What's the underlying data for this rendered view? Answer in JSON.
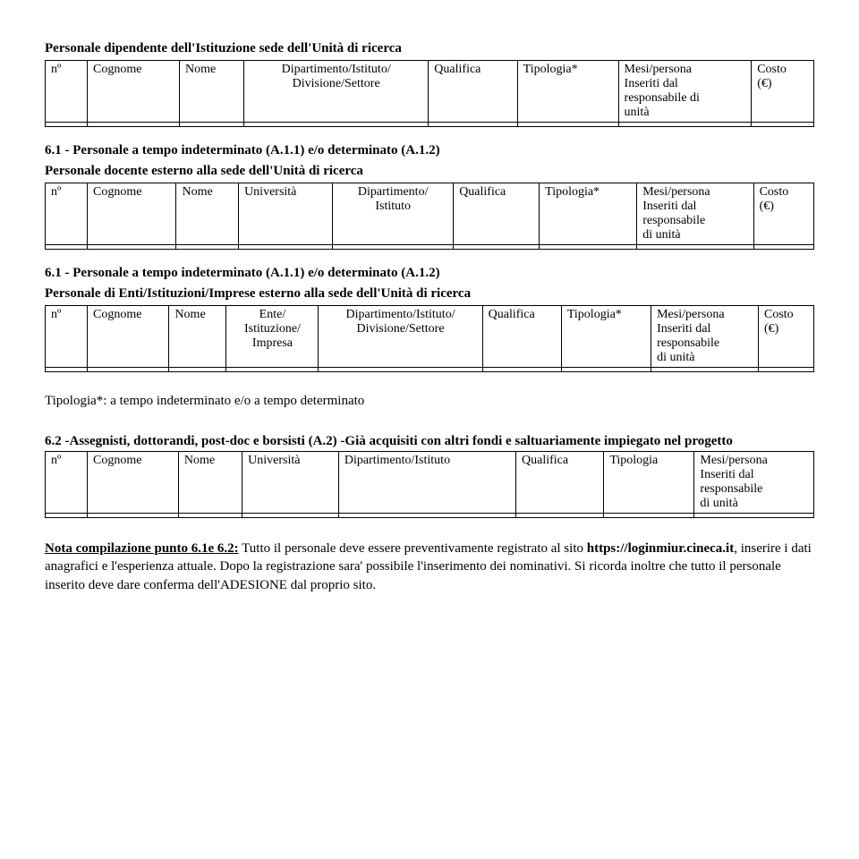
{
  "section1": {
    "title": "Personale dipendente dell'Istituzione sede dell'Unità di ricerca",
    "headers": {
      "c0": "nº",
      "c1": "Cognome",
      "c2": "Nome",
      "c3": "Dipartimento/Istituto/\nDivisione/Settore",
      "c4": "Qualifica",
      "c5": "Tipologia*",
      "c6": "Mesi/persona\nInseriti dal\nresponsabile di\nunità",
      "c7": "Costo\n(€)"
    }
  },
  "section2": {
    "heading": "6.1 - Personale a tempo indeterminato (A.1.1) e/o determinato (A.1.2)",
    "sub": "Personale docente esterno alla sede dell'Unità di ricerca",
    "headers": {
      "c0": "nº",
      "c1": "Cognome",
      "c2": "Nome",
      "c3": "Università",
      "c4": "Dipartimento/\nIstituto",
      "c5": "Qualifica",
      "c6": "Tipologia*",
      "c7": "Mesi/persona\nInseriti dal\nresponsabile\ndi unità",
      "c8": "Costo\n(€)"
    }
  },
  "section3": {
    "heading": "6.1 - Personale a tempo indeterminato (A.1.1) e/o determinato (A.1.2)",
    "sub": "Personale di Enti/Istituzioni/Imprese esterno alla sede dell'Unità di ricerca",
    "headers": {
      "c0": "nº",
      "c1": "Cognome",
      "c2": "Nome",
      "c3": "Ente/\nIstituzione/\nImpresa",
      "c4": "Dipartimento/Istituto/\nDivisione/Settore",
      "c5": "Qualifica",
      "c6": "Tipologia*",
      "c7": "Mesi/persona\nInseriti dal\nresponsabile\ndi unità",
      "c8": "Costo\n(€)"
    }
  },
  "tipologia_note": "Tipologia*: a tempo indeterminato e/o a   tempo determinato",
  "section4": {
    "heading": "6.2 -Assegnisti, dottorandi, post-doc e borsisti (A.2) -Già acquisiti con altri fondi e saltuariamente impiegato nel progetto",
    "headers": {
      "c0": "nº",
      "c1": "Cognome",
      "c2": "Nome",
      "c3": "Università",
      "c4": "Dipartimento/Istituto",
      "c5": "Qualifica",
      "c6": "Tipologia",
      "c7": "Mesi/persona\nInseriti dal\nresponsabile\ndi unità"
    }
  },
  "footer_note": {
    "lead": "Nota compilazione punto 6.1e 6.2:",
    "body_a": " Tutto il personale deve essere preventivamente registrato al sito ",
    "link": "https://loginmiur.cineca.it",
    "body_b": ", inserire i dati anagrafici e l'esperienza attuale. Dopo la registrazione sara' possibile l'inserimento dei nominativi. Si ricorda inoltre che tutto il personale inserito deve dare conferma dell'ADESIONE dal proprio sito."
  }
}
